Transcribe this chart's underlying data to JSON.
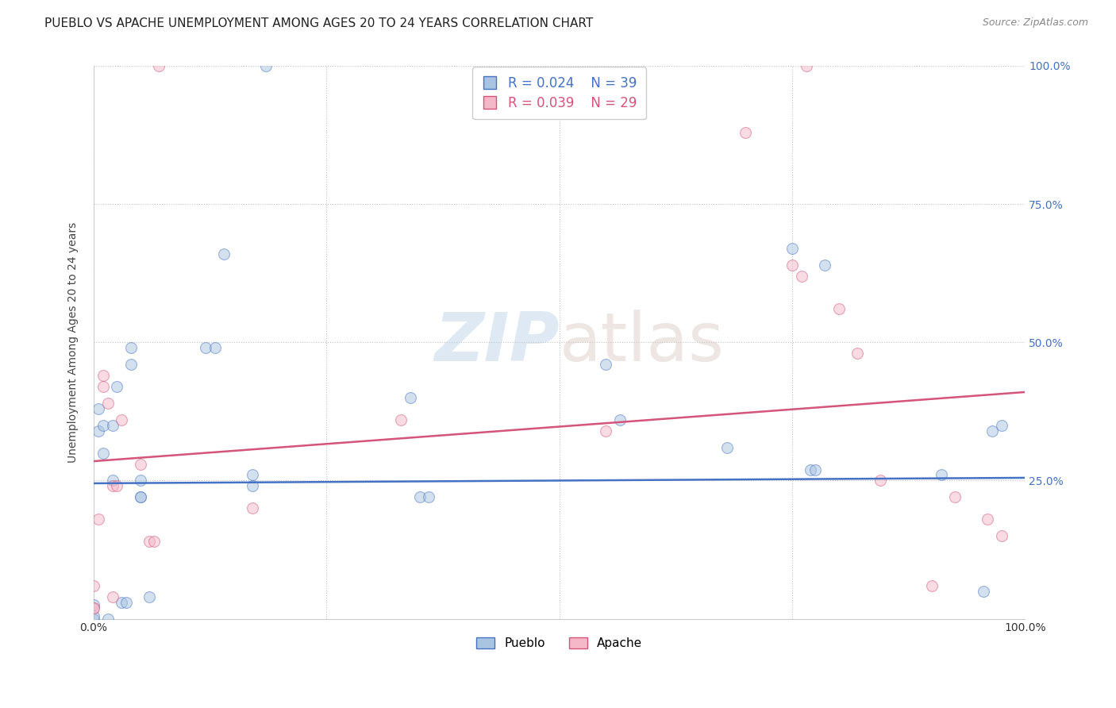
{
  "title": "PUEBLO VS APACHE UNEMPLOYMENT AMONG AGES 20 TO 24 YEARS CORRELATION CHART",
  "source": "Source: ZipAtlas.com",
  "ylabel": "Unemployment Among Ages 20 to 24 years",
  "xlabel": "",
  "xlim": [
    0,
    1.0
  ],
  "ylim": [
    0,
    1.0
  ],
  "pueblo_color": "#a8c4e0",
  "apache_color": "#f4b8c8",
  "pueblo_line_color": "#4472c4",
  "apache_line_color": "#d4547a",
  "legend_pueblo_R": "R = 0.024",
  "legend_pueblo_N": "N = 39",
  "legend_apache_R": "R = 0.039",
  "legend_apache_N": "N = 29",
  "watermark_zip": "ZIP",
  "watermark_atlas": "atlas",
  "pueblo_x": [
    0.0,
    0.0,
    0.0,
    0.005,
    0.005,
    0.01,
    0.01,
    0.015,
    0.02,
    0.02,
    0.025,
    0.03,
    0.035,
    0.04,
    0.04,
    0.05,
    0.05,
    0.05,
    0.06,
    0.12,
    0.13,
    0.14,
    0.17,
    0.17,
    0.185,
    0.34,
    0.35,
    0.36,
    0.55,
    0.565,
    0.68,
    0.75,
    0.77,
    0.775,
    0.785,
    0.91,
    0.955,
    0.965,
    0.975
  ],
  "pueblo_y": [
    0.0,
    0.025,
    0.005,
    0.38,
    0.34,
    0.35,
    0.3,
    0.0,
    0.35,
    0.25,
    0.42,
    0.03,
    0.03,
    0.46,
    0.49,
    0.25,
    0.22,
    0.22,
    0.04,
    0.49,
    0.49,
    0.66,
    0.24,
    0.26,
    1.0,
    0.4,
    0.22,
    0.22,
    0.46,
    0.36,
    0.31,
    0.67,
    0.27,
    0.27,
    0.64,
    0.26,
    0.05,
    0.34,
    0.35
  ],
  "apache_x": [
    0.0,
    0.0,
    0.0,
    0.005,
    0.01,
    0.01,
    0.015,
    0.02,
    0.02,
    0.025,
    0.03,
    0.05,
    0.06,
    0.065,
    0.07,
    0.17,
    0.33,
    0.55,
    0.7,
    0.75,
    0.76,
    0.765,
    0.8,
    0.82,
    0.845,
    0.9,
    0.925,
    0.96,
    0.975
  ],
  "apache_y": [
    0.02,
    0.02,
    0.06,
    0.18,
    0.42,
    0.44,
    0.39,
    0.04,
    0.24,
    0.24,
    0.36,
    0.28,
    0.14,
    0.14,
    1.0,
    0.2,
    0.36,
    0.34,
    0.88,
    0.64,
    0.62,
    1.0,
    0.56,
    0.48,
    0.25,
    0.06,
    0.22,
    0.18,
    0.15
  ],
  "marker_size": 100,
  "marker_alpha": 0.5,
  "pueblo_trend_x": [
    0.0,
    1.0
  ],
  "pueblo_trend_y": [
    0.245,
    0.255
  ],
  "apache_trend_x": [
    0.0,
    1.0
  ],
  "apache_trend_y": [
    0.285,
    0.41
  ]
}
